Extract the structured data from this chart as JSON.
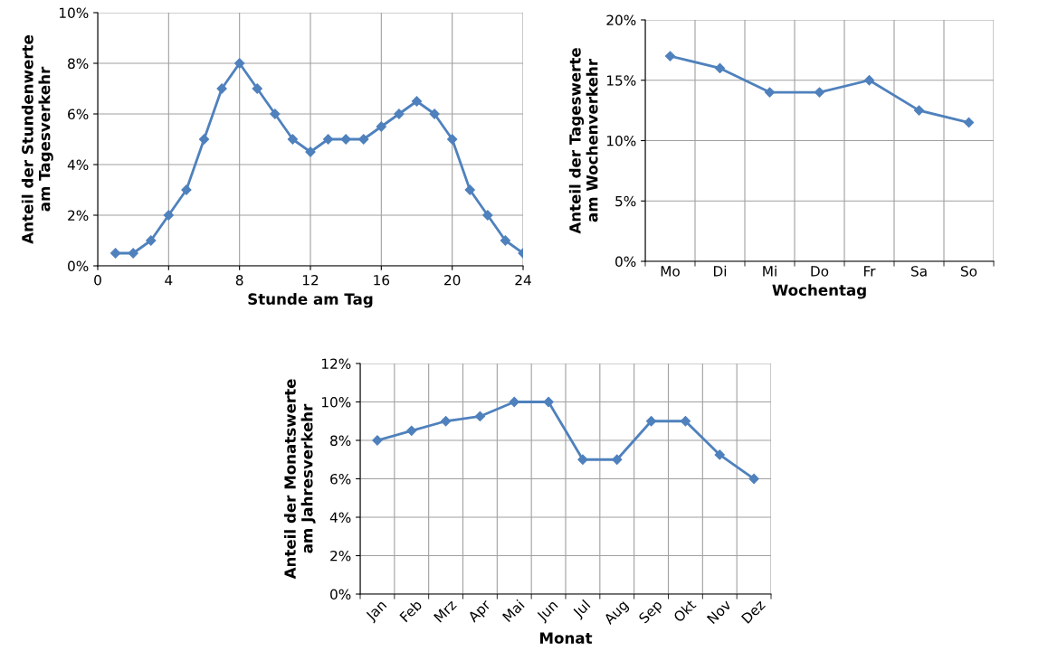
{
  "chart_data": [
    {
      "type": "line",
      "xlabel": "Stunde am Tag",
      "ylabel": "Anteil der Stundenwerte\nam Tagesverkehr",
      "x": [
        1,
        2,
        3,
        4,
        5,
        6,
        7,
        8,
        9,
        10,
        11,
        12,
        13,
        14,
        15,
        16,
        17,
        18,
        19,
        20,
        21,
        22,
        23,
        24
      ],
      "series": [
        {
          "color": "#4f81bd",
          "values": [
            0.5,
            0.5,
            1,
            2,
            3,
            5,
            7,
            8,
            7,
            6,
            5,
            4.5,
            5,
            5,
            5,
            5.5,
            6,
            6.5,
            6,
            5,
            3,
            2,
            1,
            0.5
          ]
        }
      ],
      "xlim": [
        0,
        24
      ],
      "xticks": [
        0,
        4,
        8,
        12,
        16,
        20,
        24
      ],
      "ylim": [
        0,
        10
      ],
      "yticks": [
        {
          "value": 0,
          "label": "0%"
        },
        {
          "value": 2,
          "label": "2%"
        },
        {
          "value": 4,
          "label": "4%"
        },
        {
          "value": 6,
          "label": "6%"
        },
        {
          "value": 8,
          "label": "8%"
        },
        {
          "value": 10,
          "label": "10%"
        }
      ],
      "grid": true,
      "marker": "diamond",
      "line_style": "solid"
    },
    {
      "type": "line",
      "xlabel": "Wochentag",
      "ylabel": "Anteil der Tageswerte\nam Wochenverkehr",
      "categories": [
        "Mo",
        "Di",
        "Mi",
        "Do",
        "Fr",
        "Sa",
        "So"
      ],
      "series": [
        {
          "color": "#4f81bd",
          "values": [
            17,
            16,
            14,
            14,
            15,
            12.5,
            11.5
          ]
        }
      ],
      "ylim": [
        0,
        20
      ],
      "yticks": [
        {
          "value": 0,
          "label": "0%"
        },
        {
          "value": 5,
          "label": "5%"
        },
        {
          "value": 10,
          "label": "10%"
        },
        {
          "value": 15,
          "label": "15%"
        },
        {
          "value": 20,
          "label": "20%"
        }
      ],
      "grid": true,
      "marker": "diamond",
      "line_style": "solid"
    },
    {
      "type": "line",
      "xlabel": "Monat",
      "ylabel": "Anteil der Monatswerte\nam Jahresverkehr",
      "categories": [
        "Jan",
        "Feb",
        "Mrz",
        "Apr",
        "Mai",
        "Jun",
        "Jul",
        "Aug",
        "Sep",
        "Okt",
        "Nov",
        "Dez"
      ],
      "series": [
        {
          "color": "#4f81bd",
          "values": [
            8,
            8.5,
            9,
            9.25,
            10,
            10,
            7,
            7,
            9,
            9,
            7.25,
            6
          ]
        }
      ],
      "ylim": [
        0,
        12
      ],
      "yticks": [
        {
          "value": 0,
          "label": "0%"
        },
        {
          "value": 2,
          "label": "2%"
        },
        {
          "value": 4,
          "label": "4%"
        },
        {
          "value": 6,
          "label": "6%"
        },
        {
          "value": 8,
          "label": "8%"
        },
        {
          "value": 10,
          "label": "10%"
        },
        {
          "value": 12,
          "label": "12%"
        }
      ],
      "grid": true,
      "marker": "diamond",
      "line_style": "solid"
    }
  ]
}
